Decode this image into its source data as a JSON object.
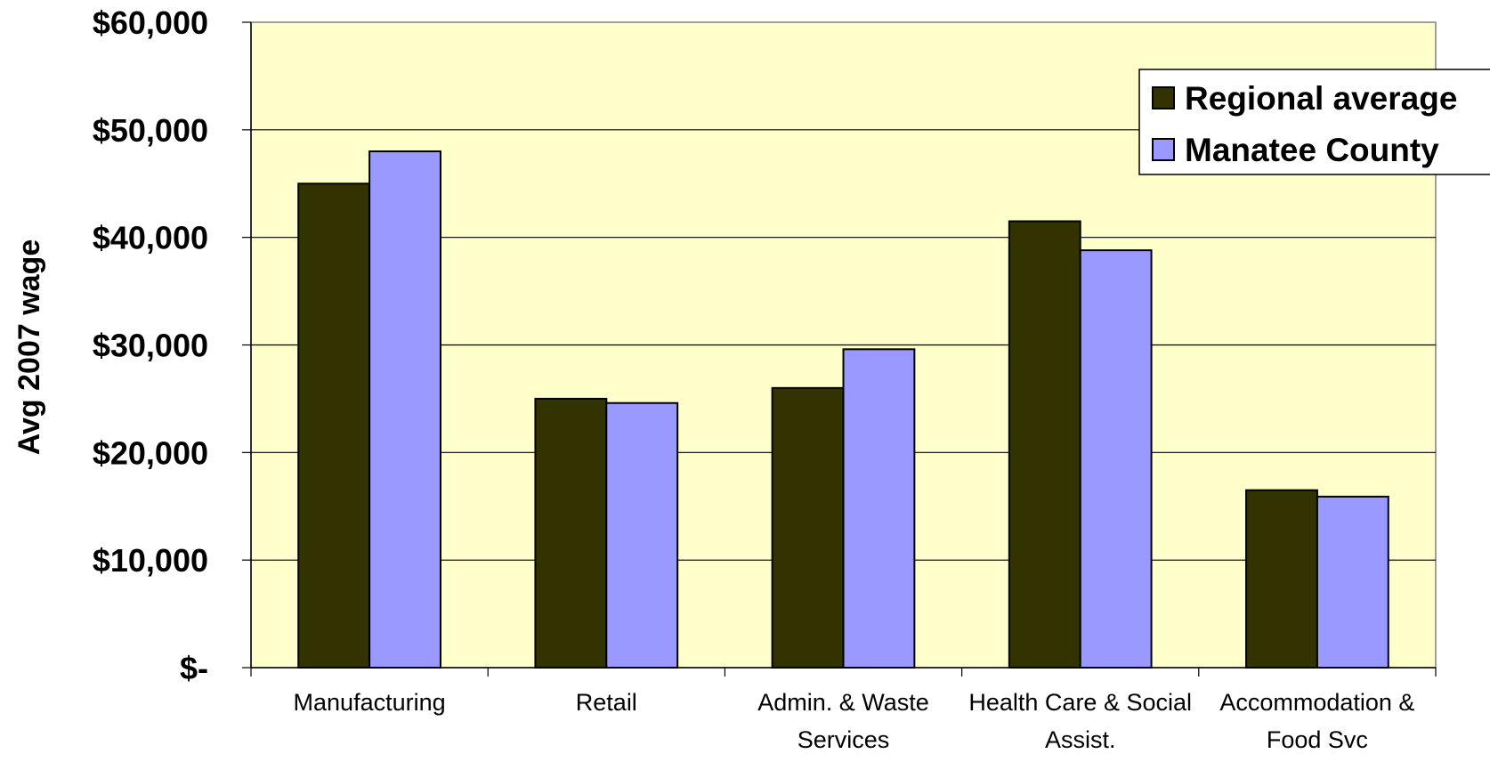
{
  "chart_data": {
    "type": "bar",
    "title": "",
    "xlabel": "",
    "ylabel": "Avg 2007 wage",
    "ylim": [
      0,
      60000
    ],
    "yticks": [
      0,
      10000,
      20000,
      30000,
      40000,
      50000,
      60000
    ],
    "ytick_labels": [
      "$-",
      "$10,000",
      "$20,000",
      "$30,000",
      "$40,000",
      "$50,000",
      "$60,000"
    ],
    "categories": [
      [
        "Manufacturing"
      ],
      [
        "Retail"
      ],
      [
        "Admin. & Waste",
        "Services"
      ],
      [
        "Health Care & Social",
        "Assist."
      ],
      [
        "Accommodation &",
        "Food Svc"
      ]
    ],
    "series": [
      {
        "name": "Regional average",
        "color": "#333300",
        "values": [
          45000,
          25000,
          26000,
          41500,
          16500
        ]
      },
      {
        "name": "Manatee County",
        "color": "#9999ff",
        "values": [
          48000,
          24600,
          29600,
          38800,
          15900
        ]
      }
    ],
    "plot_background": "#ffffcc",
    "grid": true,
    "legend_position": "top-right"
  }
}
